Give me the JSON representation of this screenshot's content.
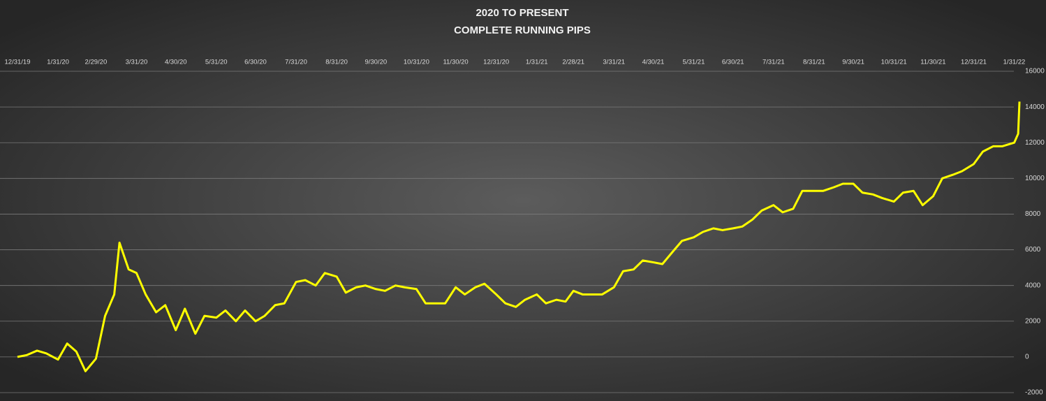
{
  "chart_data": {
    "type": "line",
    "title": "2020 TO PRESENT",
    "subtitle": "COMPLETE RUNNING PIPS",
    "color": "#ffff00",
    "grid": true,
    "x": [
      "12/31/19",
      "1/7/20",
      "1/15/20",
      "1/22/20",
      "1/31/20",
      "2/7/20",
      "2/14/20",
      "2/21/20",
      "2/29/20",
      "3/7/20",
      "3/14/20",
      "3/18/20",
      "3/25/20",
      "3/31/20",
      "4/7/20",
      "4/15/20",
      "4/22/20",
      "4/30/20",
      "5/7/20",
      "5/15/20",
      "5/22/20",
      "5/31/20",
      "6/7/20",
      "6/15/20",
      "6/22/20",
      "6/30/20",
      "7/7/20",
      "7/15/20",
      "7/22/20",
      "7/31/20",
      "8/7/20",
      "8/15/20",
      "8/22/20",
      "8/31/20",
      "9/7/20",
      "9/15/20",
      "9/22/20",
      "9/30/20",
      "10/7/20",
      "10/15/20",
      "10/22/20",
      "10/31/20",
      "11/7/20",
      "11/15/20",
      "11/22/20",
      "11/30/20",
      "12/7/20",
      "12/15/20",
      "12/22/20",
      "12/31/20",
      "1/7/21",
      "1/15/21",
      "1/22/21",
      "1/31/21",
      "2/7/21",
      "2/15/21",
      "2/22/21",
      "2/28/21",
      "3/7/21",
      "3/15/21",
      "3/22/21",
      "3/31/21",
      "4/7/21",
      "4/15/21",
      "4/22/21",
      "4/30/21",
      "5/7/21",
      "5/15/21",
      "5/22/21",
      "5/31/21",
      "6/7/21",
      "6/15/21",
      "6/22/21",
      "6/30/21",
      "7/7/21",
      "7/15/21",
      "7/22/21",
      "7/31/21",
      "8/7/21",
      "8/15/21",
      "8/22/21",
      "8/31/21",
      "9/7/21",
      "9/15/21",
      "9/22/21",
      "9/30/21",
      "10/7/21",
      "10/15/21",
      "10/22/21",
      "10/31/21",
      "11/7/21",
      "11/15/21",
      "11/22/21",
      "11/30/21",
      "12/7/21",
      "12/15/21",
      "12/22/21",
      "12/31/21",
      "1/7/22",
      "1/15/22",
      "1/22/22",
      "1/31/22",
      "2/3/22",
      "2/4/22"
    ],
    "values": [
      0,
      100,
      350,
      200,
      -150,
      750,
      300,
      -800,
      -100,
      2300,
      3500,
      6400,
      4900,
      4700,
      3500,
      2500,
      2900,
      1500,
      2700,
      1300,
      2300,
      2200,
      2600,
      2000,
      2600,
      2000,
      2300,
      2900,
      3000,
      4200,
      4300,
      4000,
      4700,
      4500,
      3600,
      3900,
      4000,
      3800,
      3700,
      4000,
      3900,
      3800,
      3000,
      3000,
      3000,
      3900,
      3500,
      3900,
      4100,
      3500,
      3000,
      2800,
      3200,
      3500,
      3000,
      3200,
      3100,
      3700,
      3500,
      3500,
      3500,
      3900,
      4800,
      4900,
      5400,
      5300,
      5200,
      5900,
      6500,
      6700,
      7000,
      7200,
      7100,
      7200,
      7300,
      7700,
      8200,
      8500,
      8100,
      8300,
      9300,
      9300,
      9300,
      9500,
      9700,
      9700,
      9200,
      9100,
      8900,
      8700,
      9200,
      9300,
      8500,
      9000,
      10000,
      10200,
      10400,
      10800,
      11500,
      11800,
      11800,
      12000,
      12500,
      14300
    ],
    "xlim": [
      "12/31/19",
      "2/4/22"
    ],
    "xticks": [
      "12/31/19",
      "1/31/20",
      "2/29/20",
      "3/31/20",
      "4/30/20",
      "5/31/20",
      "6/30/20",
      "7/31/20",
      "8/31/20",
      "9/30/20",
      "10/31/20",
      "11/30/20",
      "12/31/20",
      "1/31/21",
      "2/28/21",
      "3/31/21",
      "4/30/21",
      "5/31/21",
      "6/30/21",
      "7/31/21",
      "8/31/21",
      "9/30/21",
      "10/31/21",
      "11/30/21",
      "12/31/21",
      "1/31/22"
    ],
    "ylim": [
      -2000,
      16000
    ],
    "yticks": [
      -2000,
      0,
      2000,
      4000,
      6000,
      8000,
      10000,
      12000,
      14000,
      16000
    ]
  }
}
